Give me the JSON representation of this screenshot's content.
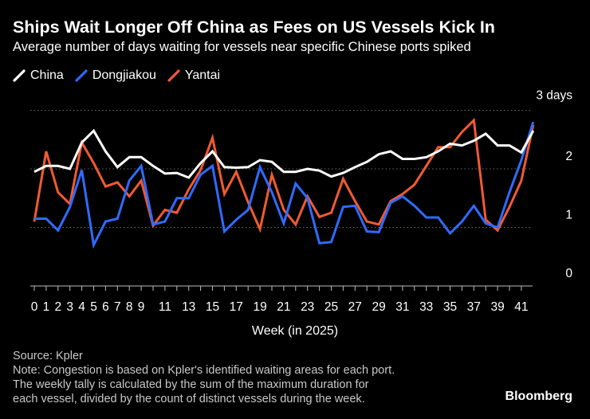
{
  "title": "Ships Wait Longer Off China as Fees on US Vessels Kick In",
  "subtitle": "Average number of days waiting for vessels near specific Chinese ports spiked",
  "source": "Source: Kpler",
  "note_lines": [
    "Note: Congestion is based on Kpler's identified waiting areas for each port.",
    "The weekly tally is calculated by the sum of the maximum duration for",
    "each vessel, divided by the count of distinct vessels during the week."
  ],
  "brand": "Bloomberg",
  "colors": {
    "China": "#ffffff",
    "Dongjiakou": "#2f6bff",
    "Yantai": "#f25a31",
    "grid": "#6e6e6e",
    "axis": "#bbbbbb"
  },
  "chart_data": {
    "type": "line",
    "xlabel": "Week (in 2025)",
    "ylabel": "",
    "ylim": [
      0,
      3
    ],
    "yticks": [
      0,
      1,
      2,
      3
    ],
    "ytick_labels": [
      "0",
      "1",
      "2",
      "3 days"
    ],
    "xticks": [
      0,
      1,
      2,
      3,
      4,
      5,
      6,
      7,
      8,
      9,
      11,
      13,
      15,
      17,
      19,
      21,
      23,
      25,
      27,
      29,
      31,
      33,
      35,
      37,
      39,
      41
    ],
    "xlim": [
      0,
      41
    ],
    "x": [
      0,
      1,
      2,
      3,
      4,
      5,
      6,
      7,
      8,
      9,
      10,
      11,
      12,
      13,
      14,
      15,
      16,
      17,
      18,
      19,
      20,
      21,
      22,
      23,
      24,
      25,
      26,
      27,
      28,
      29,
      30,
      31,
      32,
      33,
      34,
      35,
      36,
      37,
      38,
      39,
      40,
      41,
      42
    ],
    "legend_position": "top-left",
    "series": [
      {
        "name": "China",
        "values": [
          1.95,
          2.05,
          2.05,
          2.0,
          2.45,
          2.65,
          2.3,
          2.03,
          2.2,
          2.2,
          2.05,
          1.92,
          1.93,
          1.85,
          2.1,
          2.3,
          2.03,
          2.02,
          2.03,
          2.15,
          2.12,
          1.95,
          1.95,
          2.0,
          1.97,
          1.87,
          1.93,
          2.03,
          2.12,
          2.25,
          2.3,
          2.17,
          2.17,
          2.2,
          2.3,
          2.43,
          2.4,
          2.48,
          2.6,
          2.4,
          2.4,
          2.28,
          2.65
        ]
      },
      {
        "name": "Dongjiakou",
        "values": [
          1.15,
          1.15,
          0.95,
          1.35,
          1.98,
          0.7,
          1.1,
          1.15,
          1.8,
          2.05,
          1.05,
          1.1,
          1.5,
          1.5,
          1.9,
          2.05,
          0.93,
          1.13,
          1.3,
          2.03,
          1.6,
          1.07,
          1.75,
          1.5,
          0.73,
          0.75,
          1.35,
          1.37,
          0.93,
          0.92,
          1.42,
          1.53,
          1.37,
          1.17,
          1.17,
          0.9,
          1.1,
          1.37,
          1.07,
          1.0,
          1.6,
          2.15,
          2.8
        ]
      },
      {
        "name": "Yantai",
        "values": [
          1.1,
          2.3,
          1.6,
          1.4,
          2.45,
          2.1,
          1.7,
          1.77,
          1.53,
          1.8,
          1.03,
          1.3,
          1.25,
          1.65,
          1.98,
          2.53,
          1.57,
          1.95,
          1.43,
          0.97,
          1.9,
          1.3,
          1.05,
          1.53,
          1.18,
          1.25,
          1.83,
          1.45,
          1.1,
          1.05,
          1.45,
          1.57,
          1.73,
          2.05,
          2.37,
          2.37,
          2.63,
          2.83,
          1.13,
          0.95,
          1.35,
          1.8,
          2.75
        ]
      }
    ]
  }
}
